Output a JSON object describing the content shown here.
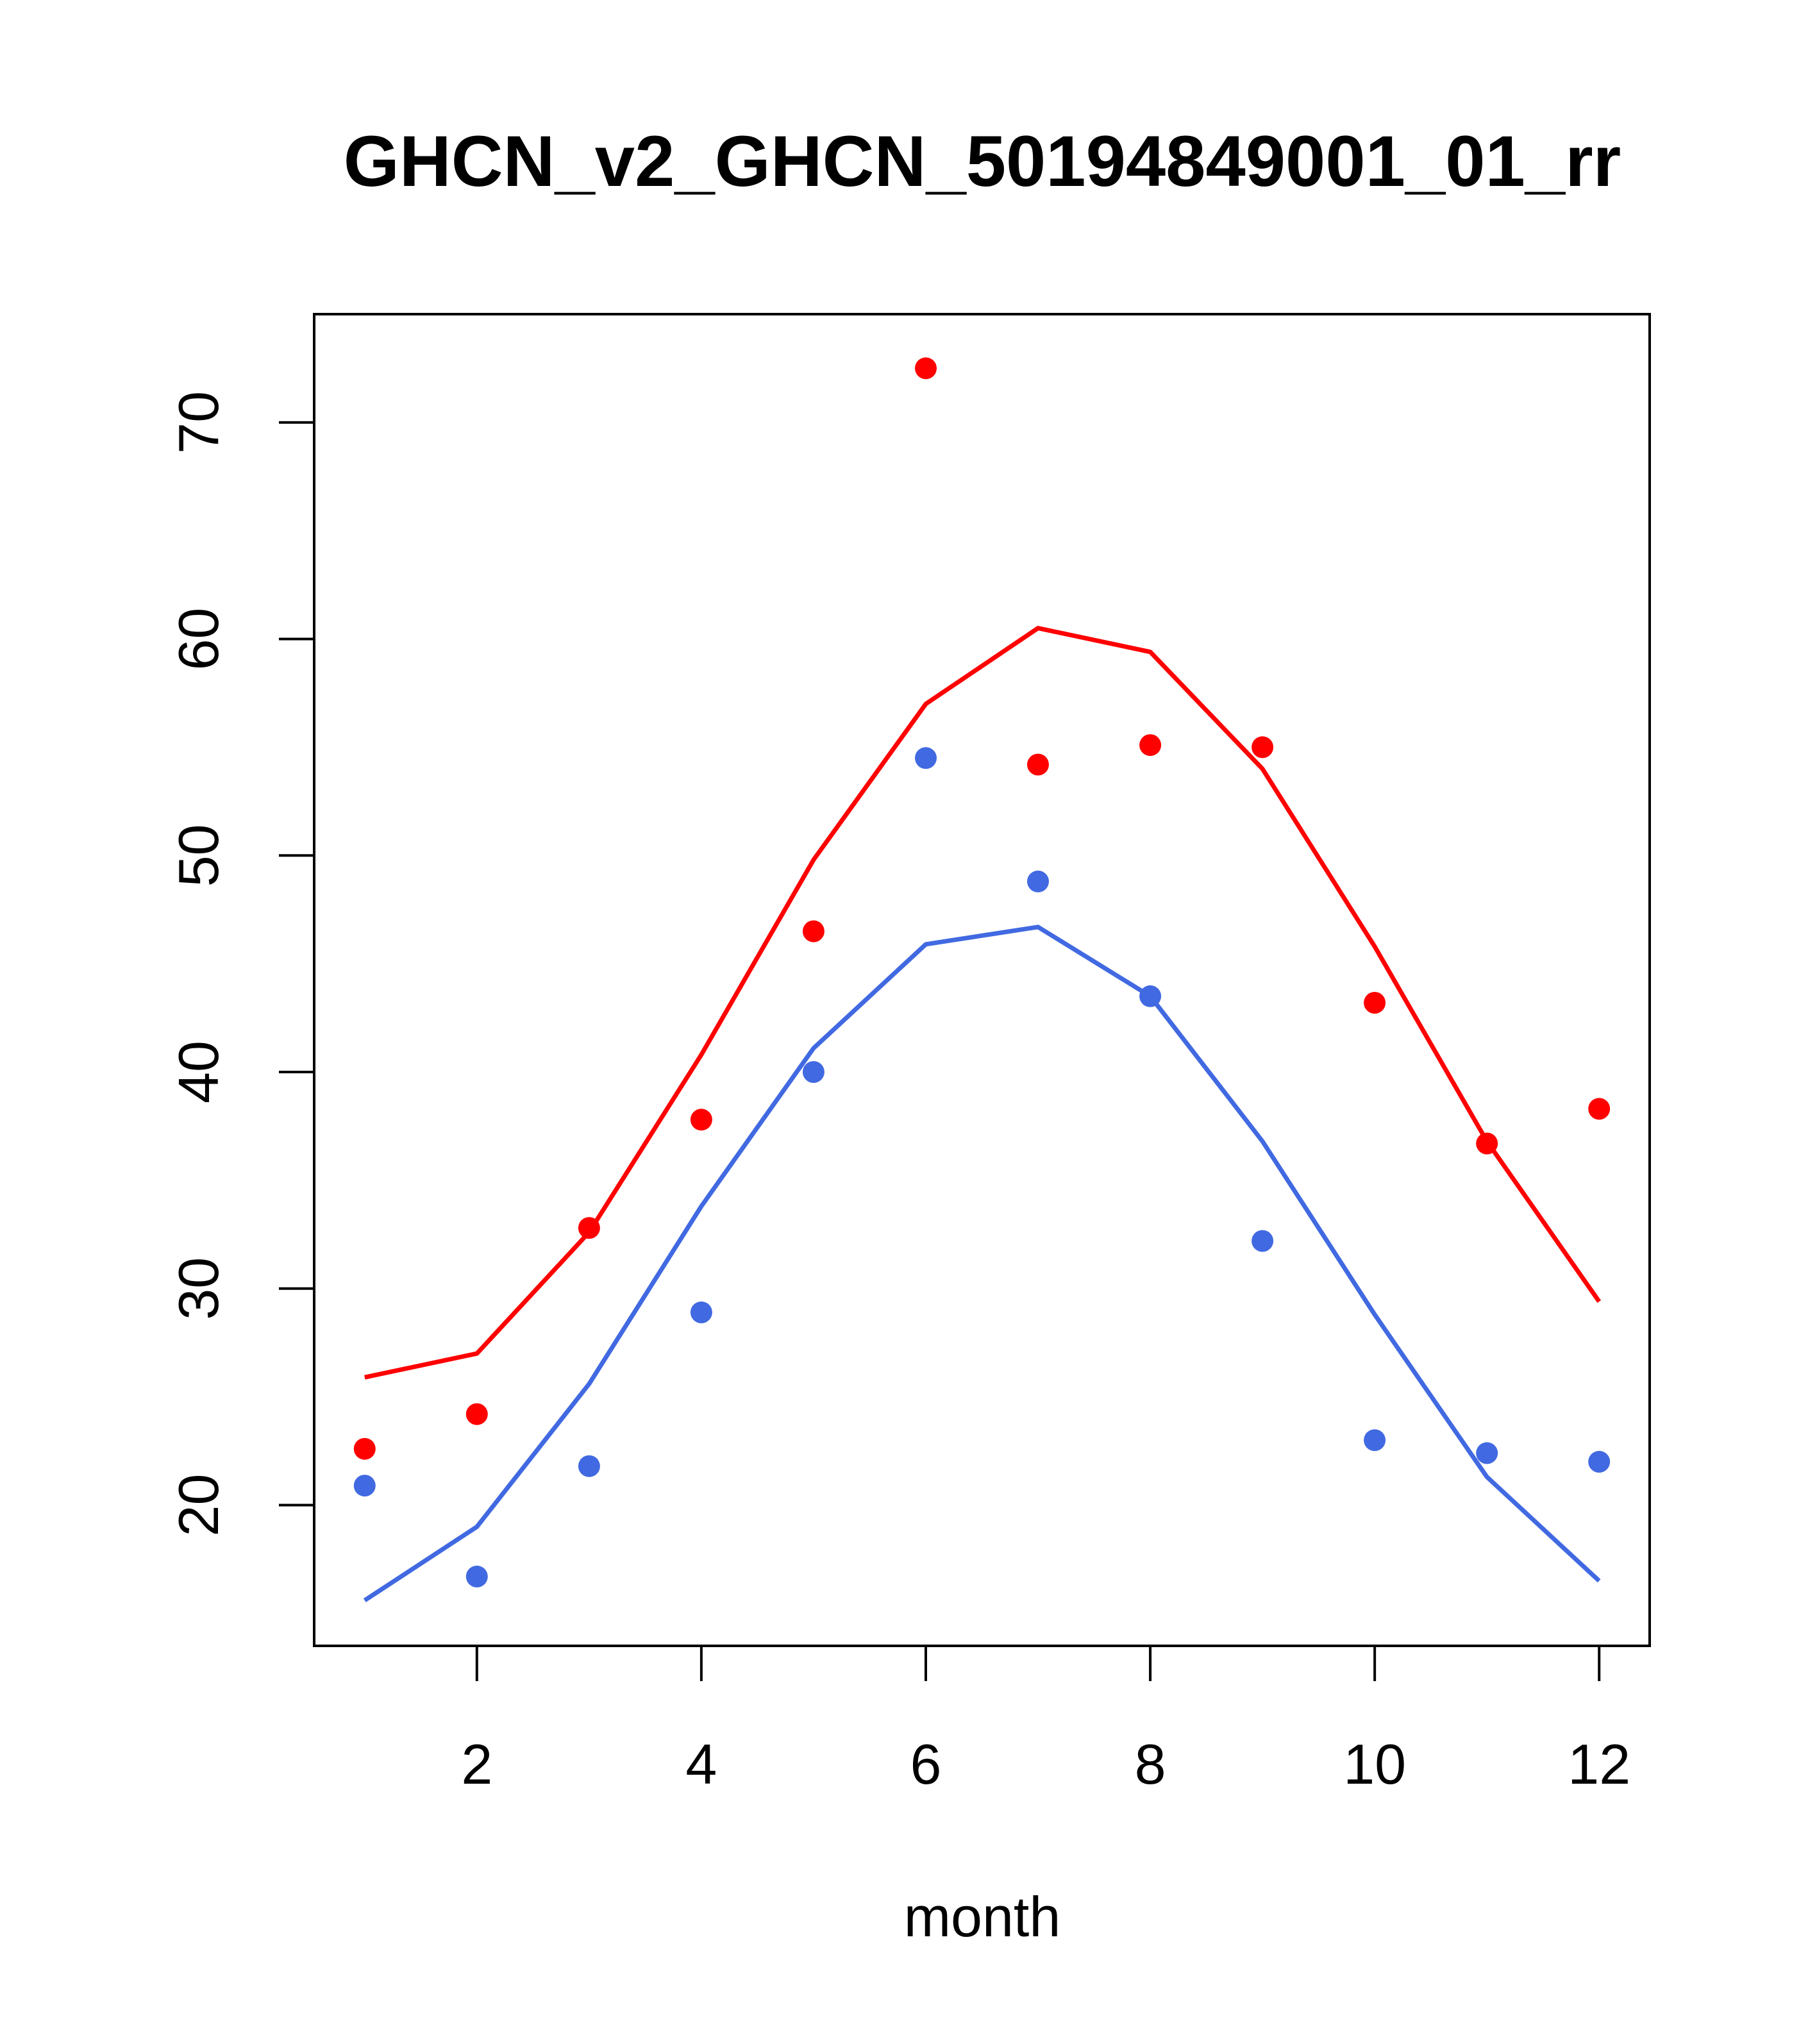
{
  "chart_data": {
    "type": "line",
    "title": "GHCN_v2_GHCN_50194849001_01_rr",
    "xlabel": "month",
    "ylabel": "",
    "xlim": [
      0.55,
      12.45
    ],
    "ylim": [
      13.5,
      75
    ],
    "xticks": [
      2,
      4,
      6,
      8,
      10,
      12
    ],
    "yticks": [
      20,
      30,
      40,
      50,
      60,
      70
    ],
    "grid": false,
    "colors": {
      "red": "#ff0000",
      "blue": "#4169e1"
    },
    "x": [
      1,
      2,
      3,
      4,
      5,
      6,
      7,
      8,
      9,
      10,
      11,
      12
    ],
    "series": [
      {
        "kind": "line",
        "color": "#ff0000",
        "values": [
          25.9,
          27.0,
          32.6,
          40.8,
          49.8,
          57.0,
          60.5,
          59.4,
          54.0,
          45.8,
          36.8,
          29.4
        ]
      },
      {
        "kind": "points",
        "color": "#ff0000",
        "values": [
          22.6,
          24.2,
          32.8,
          37.8,
          46.5,
          72.5,
          54.2,
          55.1,
          55.0,
          43.2,
          36.7,
          38.3
        ]
      },
      {
        "kind": "line",
        "color": "#4169e1",
        "values": [
          15.6,
          19.0,
          25.6,
          33.8,
          41.1,
          45.9,
          46.7,
          43.5,
          36.8,
          28.8,
          21.3,
          16.5
        ]
      },
      {
        "kind": "points",
        "color": "#4169e1",
        "values": [
          20.9,
          16.7,
          21.8,
          28.9,
          40.0,
          54.5,
          48.8,
          43.5,
          32.2,
          23.0,
          22.4,
          22.0
        ]
      }
    ]
  }
}
